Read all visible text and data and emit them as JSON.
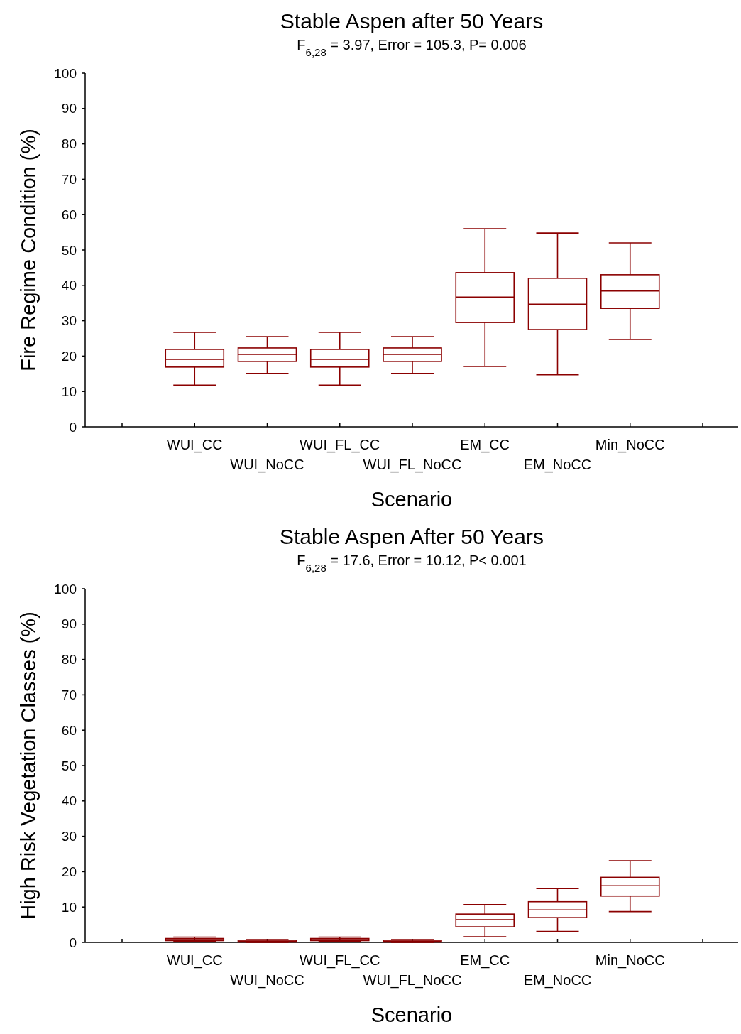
{
  "chart_data": [
    {
      "type": "box",
      "title": "Stable Aspen after 50 Years",
      "subtitle": "F$_{6,28}$ = 3.97, Error = 105.3, P= 0.006",
      "xlabel": "Scenario",
      "ylabel": "Fire Regime Condition (%)",
      "categories": [
        "WUI_CC",
        "WUI_NoCC",
        "WUI_FL_CC",
        "WUI_FL_NoCC",
        "EM_CC",
        "EM_NoCC",
        "Min_NoCC"
      ],
      "color": "#8b0000",
      "ylim": [
        0,
        100
      ],
      "yticks": [
        0,
        10,
        20,
        30,
        40,
        50,
        60,
        70,
        80,
        90,
        100
      ],
      "grid": false,
      "boxes": [
        {
          "low": 11.8,
          "q1": 16.9,
          "median": 19.1,
          "q3": 21.9,
          "high": 26.7
        },
        {
          "low": 15.1,
          "q1": 18.5,
          "median": 20.5,
          "q3": 22.3,
          "high": 25.5
        },
        {
          "low": 11.8,
          "q1": 16.9,
          "median": 19.1,
          "q3": 21.9,
          "high": 26.7
        },
        {
          "low": 15.1,
          "q1": 18.5,
          "median": 20.5,
          "q3": 22.3,
          "high": 25.5
        },
        {
          "low": 17.1,
          "q1": 29.5,
          "median": 36.7,
          "q3": 43.6,
          "high": 56
        },
        {
          "low": 14.7,
          "q1": 27.5,
          "median": 34.7,
          "q3": 42,
          "high": 54.8
        },
        {
          "low": 24.7,
          "q1": 33.5,
          "median": 38.4,
          "q3": 43,
          "high": 52
        }
      ]
    },
    {
      "type": "box",
      "title": "Stable Aspen After 50 Years",
      "subtitle": "F$_{6,28}$ = 17.6, Error = 10.12, P< 0.001",
      "xlabel": "Scenario",
      "ylabel": "High Risk Vegetation Classes (%)",
      "categories": [
        "WUI_CC",
        "WUI_NoCC",
        "WUI_FL_CC",
        "WUI_FL_NoCC",
        "EM_CC",
        "EM_NoCC",
        "Min_NoCC"
      ],
      "color": "#8b0000",
      "ylim": [
        0,
        100
      ],
      "yticks": [
        0,
        10,
        20,
        30,
        40,
        50,
        60,
        70,
        80,
        90,
        100
      ],
      "grid": false,
      "boxes": [
        {
          "low": 0.3,
          "q1": 0.5,
          "median": 0.8,
          "q3": 1.1,
          "high": 1.5
        },
        {
          "low": 0,
          "q1": 0.1,
          "median": 0.3,
          "q3": 0.6,
          "high": 0.8
        },
        {
          "low": 0.3,
          "q1": 0.5,
          "median": 0.8,
          "q3": 1.1,
          "high": 1.5
        },
        {
          "low": 0,
          "q1": 0.1,
          "median": 0.3,
          "q3": 0.6,
          "high": 0.8
        },
        {
          "low": 1.6,
          "q1": 4.4,
          "median": 6.4,
          "q3": 8,
          "high": 10.7
        },
        {
          "low": 3.1,
          "q1": 7,
          "median": 9.2,
          "q3": 11.5,
          "high": 15.2
        },
        {
          "low": 8.7,
          "q1": 13.1,
          "median": 16,
          "q3": 18.4,
          "high": 23.1
        }
      ]
    }
  ]
}
